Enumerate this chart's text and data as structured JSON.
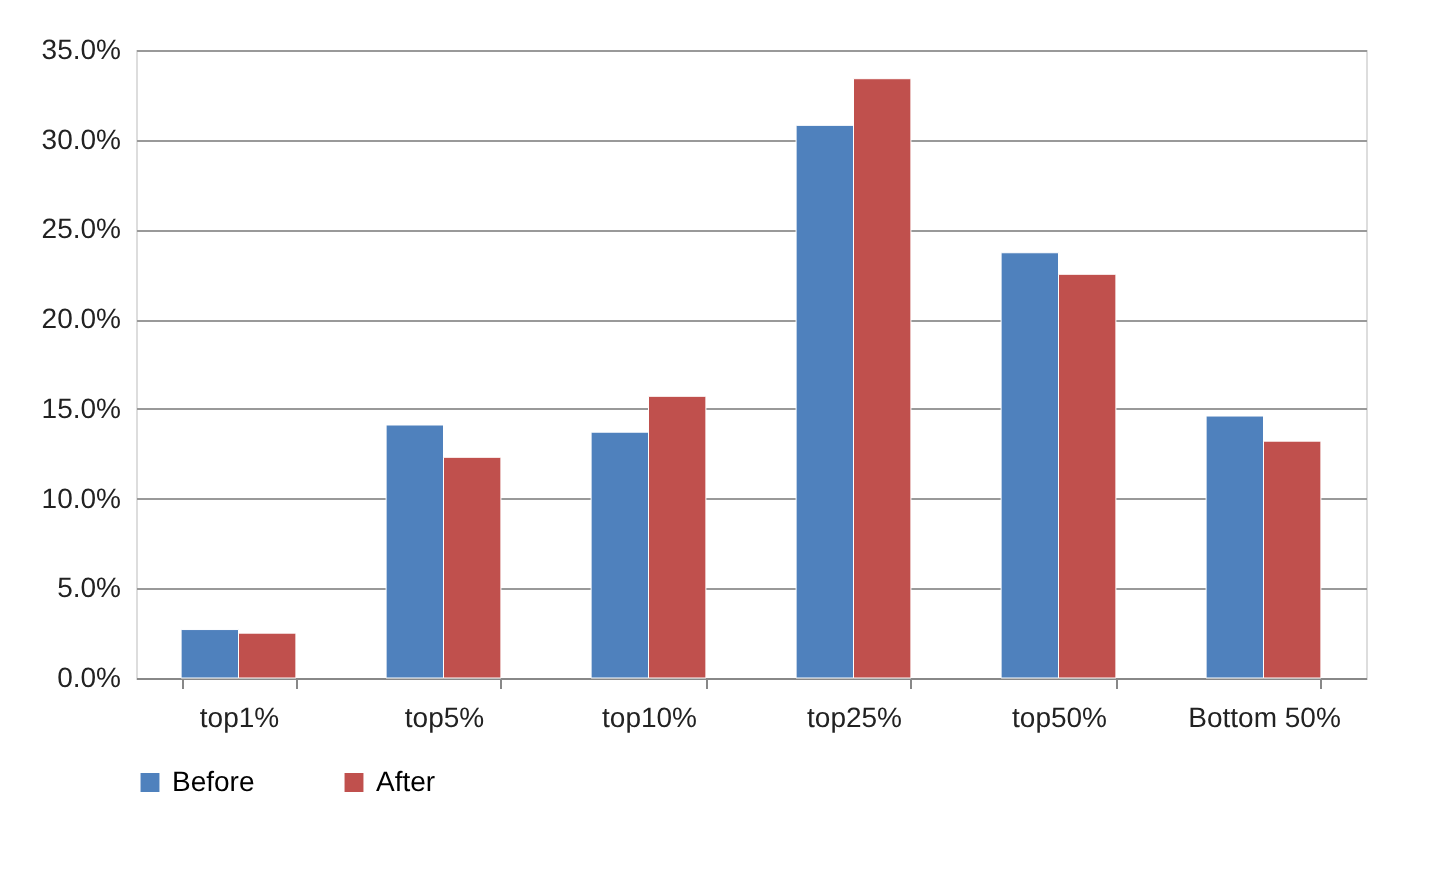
{
  "chart_data": {
    "type": "bar",
    "categories": [
      "top1%",
      "top5%",
      "top10%",
      "top25%",
      "top50%",
      "Bottom 50%"
    ],
    "series": [
      {
        "name": "Before",
        "color": "#4f81bd",
        "values": [
          2.7,
          14.1,
          13.7,
          30.8,
          23.7,
          14.6
        ]
      },
      {
        "name": "After",
        "color": "#c0504d",
        "values": [
          2.5,
          12.3,
          15.7,
          33.4,
          22.5,
          13.2
        ]
      }
    ],
    "ylim": [
      0,
      35
    ],
    "yticks": [
      {
        "value": 0,
        "label": "0.0%"
      },
      {
        "value": 5,
        "label": "5.0%"
      },
      {
        "value": 10,
        "label": "10.0%"
      },
      {
        "value": 15,
        "label": "15.0%"
      },
      {
        "value": 20,
        "label": "20.0%"
      },
      {
        "value": 25,
        "label": "25.0%"
      },
      {
        "value": 30,
        "label": "30.0%"
      },
      {
        "value": 35,
        "label": "35.0%"
      }
    ],
    "grid": "y",
    "legend": "bottom"
  }
}
